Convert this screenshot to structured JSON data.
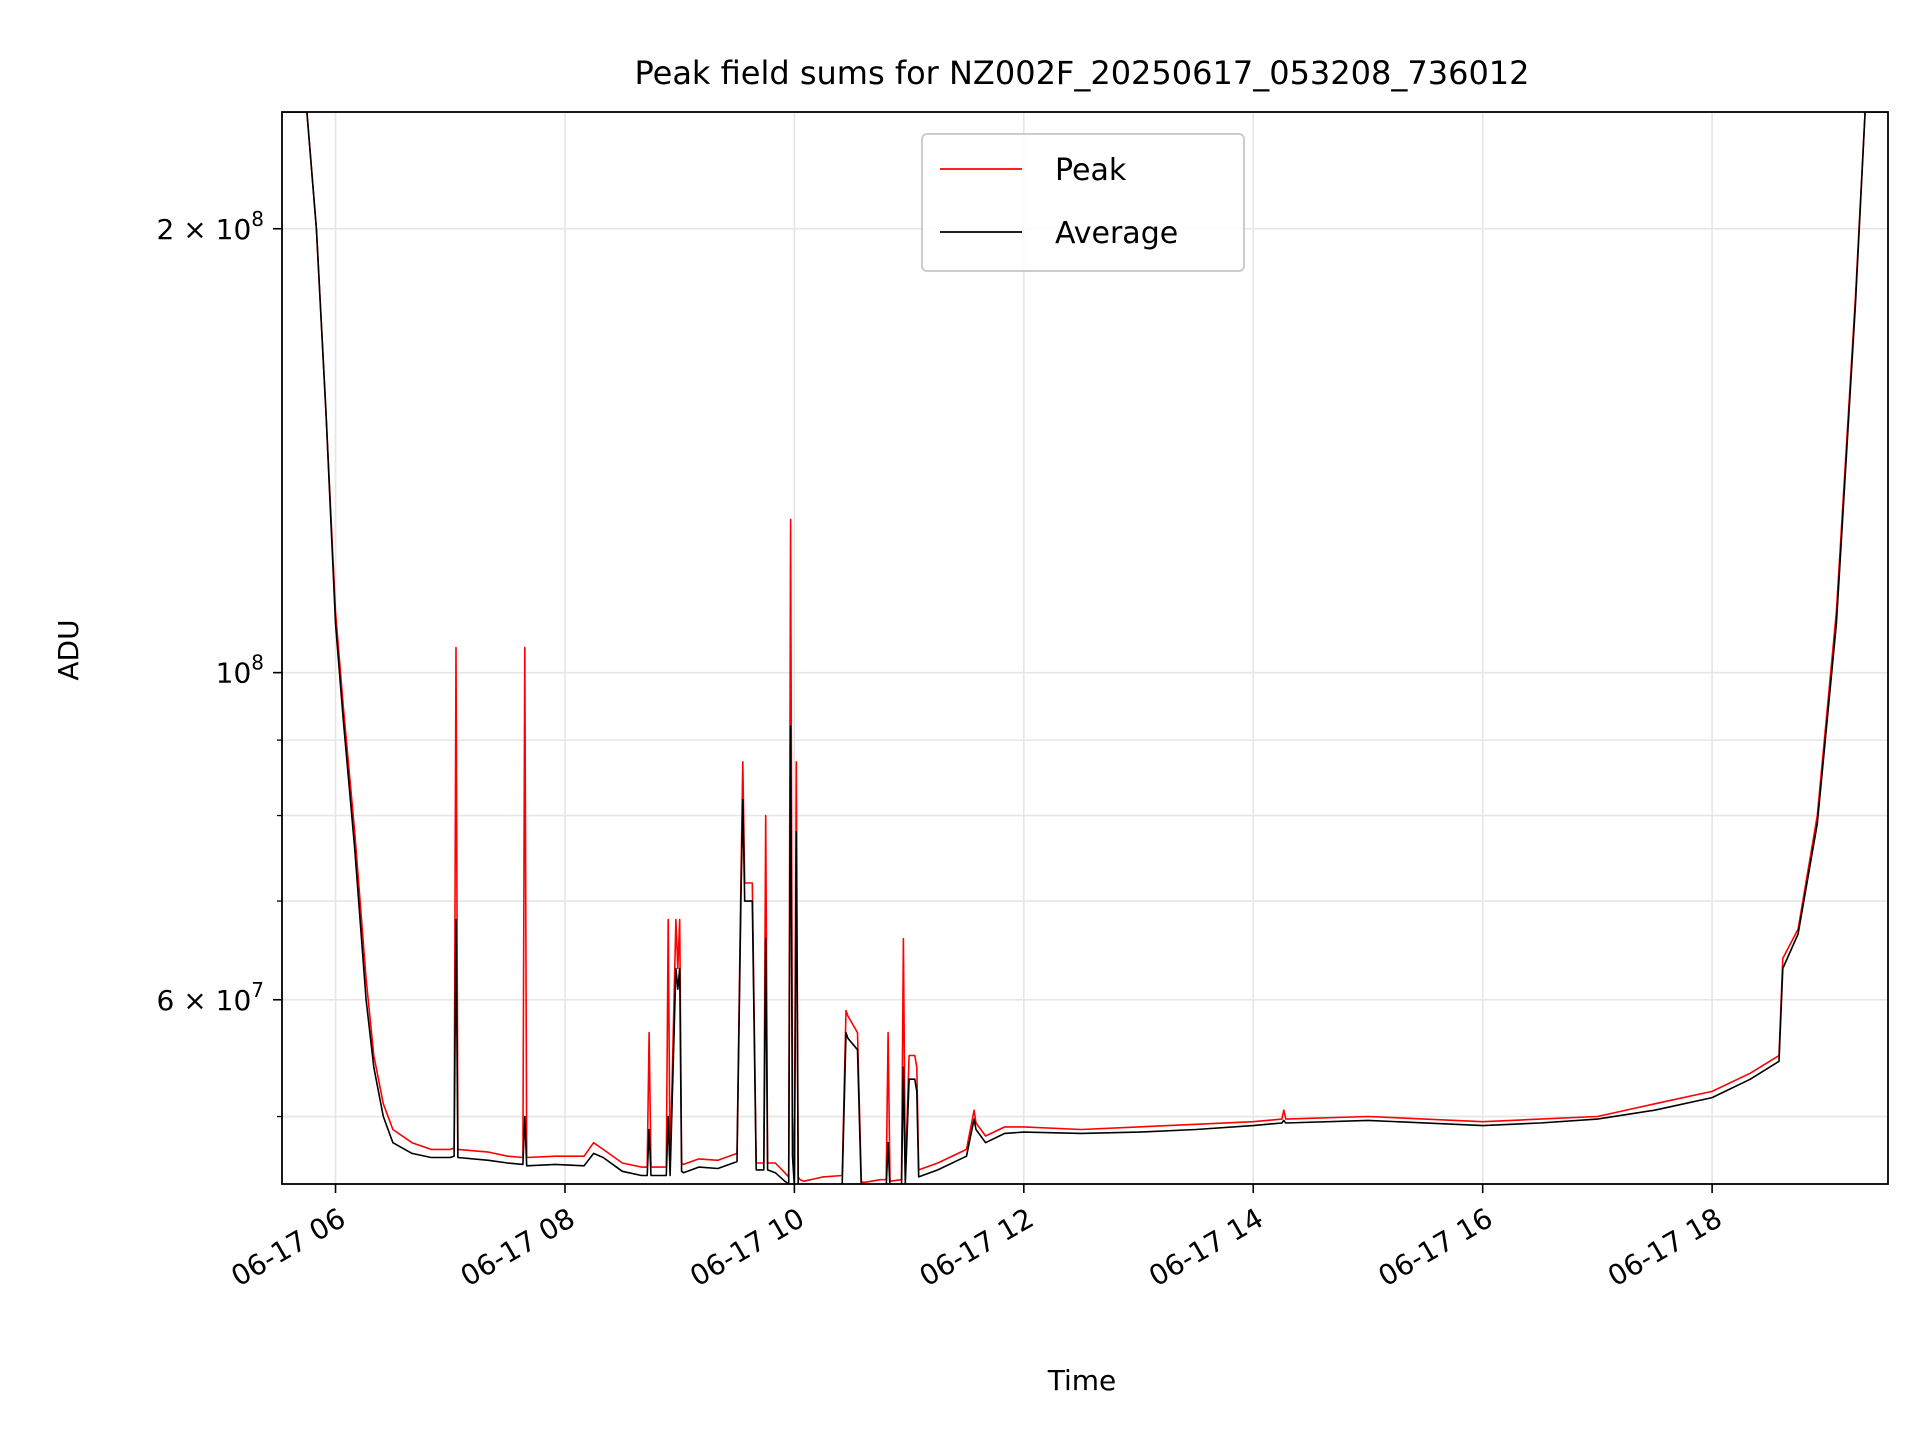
{
  "chart_data": {
    "type": "line",
    "title": "Peak field sums for NZ002F_20250617_053208_736012",
    "xlabel": "Time",
    "ylabel": "ADU",
    "yscale": "log",
    "grid": true,
    "legend_position": "upper center",
    "x_ticks": [
      "06-17 06",
      "06-17 08",
      "06-17 10",
      "06-17 12",
      "06-17 14",
      "06-17 16",
      "06-17 18"
    ],
    "x_tick_values": [
      "2025-06-17 06:00",
      "2025-06-17 08:00",
      "2025-06-17 10:00",
      "2025-06-17 12:00",
      "2025-06-17 14:00",
      "2025-06-17 16:00",
      "2025-06-17 18:00"
    ],
    "y_ticks": [
      {
        "value": 60000000,
        "mantissa": "6",
        "exponent": "7"
      },
      {
        "value": 100000000,
        "mantissa": "",
        "exponent": "8"
      },
      {
        "value": 200000000,
        "mantissa": "2",
        "exponent": "8"
      }
    ],
    "y_minor_ticks": [
      50000000,
      70000000,
      80000000,
      90000000
    ],
    "xlim": [
      "2025-06-17 05:32",
      "2025-06-17 19:32"
    ],
    "ylim": [
      45000000,
      240000000
    ],
    "series": [
      {
        "name": "Peak",
        "color": "#ff0000",
        "x": [
          "2025-06-17 05:32",
          "2025-06-17 05:45",
          "2025-06-17 05:50",
          "2025-06-17 05:55",
          "2025-06-17 06:00",
          "2025-06-17 06:04",
          "2025-06-17 06:10",
          "2025-06-17 06:16",
          "2025-06-17 06:20",
          "2025-06-17 06:25",
          "2025-06-17 06:30",
          "2025-06-17 06:40",
          "2025-06-17 06:50",
          "2025-06-17 07:00",
          "2025-06-17 07:02",
          "2025-06-17 07:03",
          "2025-06-17 07:04",
          "2025-06-17 07:20",
          "2025-06-17 07:30",
          "2025-06-17 07:38",
          "2025-06-17 07:39",
          "2025-06-17 07:40",
          "2025-06-17 07:55",
          "2025-06-17 08:10",
          "2025-06-17 08:15",
          "2025-06-17 08:20",
          "2025-06-17 08:30",
          "2025-06-17 08:40",
          "2025-06-17 08:43",
          "2025-06-17 08:44",
          "2025-06-17 08:45",
          "2025-06-17 08:53",
          "2025-06-17 08:54",
          "2025-06-17 08:55",
          "2025-06-17 08:58",
          "2025-06-17 08:59",
          "2025-06-17 09:00",
          "2025-06-17 09:01",
          "2025-06-17 09:02",
          "2025-06-17 09:10",
          "2025-06-17 09:20",
          "2025-06-17 09:30",
          "2025-06-17 09:32",
          "2025-06-17 09:33",
          "2025-06-17 09:34",
          "2025-06-17 09:35",
          "2025-06-17 09:38",
          "2025-06-17 09:40",
          "2025-06-17 09:44",
          "2025-06-17 09:45",
          "2025-06-17 09:46",
          "2025-06-17 09:50",
          "2025-06-17 09:55",
          "2025-06-17 09:57",
          "2025-06-17 09:58",
          "2025-06-17 09:59",
          "2025-06-17 10:00",
          "2025-06-17 10:01",
          "2025-06-17 10:02",
          "2025-06-17 10:03",
          "2025-06-17 10:05",
          "2025-06-17 10:15",
          "2025-06-17 10:25",
          "2025-06-17 10:27",
          "2025-06-17 10:28",
          "2025-06-17 10:33",
          "2025-06-17 10:35",
          "2025-06-17 10:36",
          "2025-06-17 10:45",
          "2025-06-17 10:48",
          "2025-06-17 10:49",
          "2025-06-17 10:50",
          "2025-06-17 10:56",
          "2025-06-17 10:57",
          "2025-06-17 10:58",
          "2025-06-17 11:00",
          "2025-06-17 11:03",
          "2025-06-17 11:04",
          "2025-06-17 11:05",
          "2025-06-17 11:15",
          "2025-06-17 11:30",
          "2025-06-17 11:34",
          "2025-06-17 11:35",
          "2025-06-17 11:40",
          "2025-06-17 11:50",
          "2025-06-17 12:00",
          "2025-06-17 12:30",
          "2025-06-17 13:00",
          "2025-06-17 13:30",
          "2025-06-17 14:00",
          "2025-06-17 14:15",
          "2025-06-17 14:16",
          "2025-06-17 14:17",
          "2025-06-17 15:00",
          "2025-06-17 16:00",
          "2025-06-17 16:30",
          "2025-06-17 17:00",
          "2025-06-17 17:30",
          "2025-06-17 18:00",
          "2025-06-17 18:20",
          "2025-06-17 18:35",
          "2025-06-17 18:37",
          "2025-06-17 18:45",
          "2025-06-17 18:55",
          "2025-06-17 19:05",
          "2025-06-17 19:15",
          "2025-06-17 19:20",
          "2025-06-17 19:32"
        ],
        "values": [
          240000000,
          240000000,
          200000000,
          150000000,
          110000000,
          95000000,
          78000000,
          62000000,
          55000000,
          51000000,
          49000000,
          48000000,
          47500000,
          47500000,
          47600000,
          104000000,
          47500000,
          47300000,
          47000000,
          46900000,
          104000000,
          46900000,
          47000000,
          47000000,
          48000000,
          47500000,
          46500000,
          46200000,
          46200000,
          57000000,
          46200000,
          46200000,
          68000000,
          46200000,
          68000000,
          63000000,
          68000000,
          46500000,
          46400000,
          46800000,
          46700000,
          47200000,
          72000000,
          87000000,
          72000000,
          72000000,
          72000000,
          46500000,
          46500000,
          80000000,
          46500000,
          46500000,
          45800000,
          45500000,
          127000000,
          50000000,
          45500000,
          87000000,
          45500000,
          45300000,
          45200000,
          45500000,
          45600000,
          59000000,
          58500000,
          57000000,
          45200000,
          45100000,
          45300000,
          45300000,
          57000000,
          45200000,
          45300000,
          66000000,
          45500000,
          55000000,
          55000000,
          54000000,
          46000000,
          46500000,
          47500000,
          50500000,
          49500000,
          48500000,
          49200000,
          49200000,
          49000000,
          49200000,
          49400000,
          49600000,
          49800000,
          50500000,
          49800000,
          50000000,
          49600000,
          49800000,
          50000000,
          51000000,
          52000000,
          53500000,
          55000000,
          64000000,
          67000000,
          80000000,
          110000000,
          180000000,
          240000000,
          240000000
        ]
      },
      {
        "name": "Average",
        "color": "#000000",
        "x": [
          "2025-06-17 05:32",
          "2025-06-17 05:45",
          "2025-06-17 05:50",
          "2025-06-17 05:55",
          "2025-06-17 06:00",
          "2025-06-17 06:04",
          "2025-06-17 06:10",
          "2025-06-17 06:16",
          "2025-06-17 06:20",
          "2025-06-17 06:25",
          "2025-06-17 06:30",
          "2025-06-17 06:40",
          "2025-06-17 06:50",
          "2025-06-17 07:00",
          "2025-06-17 07:02",
          "2025-06-17 07:03",
          "2025-06-17 07:04",
          "2025-06-17 07:20",
          "2025-06-17 07:30",
          "2025-06-17 07:38",
          "2025-06-17 07:39",
          "2025-06-17 07:40",
          "2025-06-17 07:55",
          "2025-06-17 08:10",
          "2025-06-17 08:15",
          "2025-06-17 08:20",
          "2025-06-17 08:30",
          "2025-06-17 08:40",
          "2025-06-17 08:43",
          "2025-06-17 08:44",
          "2025-06-17 08:45",
          "2025-06-17 08:53",
          "2025-06-17 08:54",
          "2025-06-17 08:55",
          "2025-06-17 08:58",
          "2025-06-17 08:59",
          "2025-06-17 09:00",
          "2025-06-17 09:01",
          "2025-06-17 09:02",
          "2025-06-17 09:10",
          "2025-06-17 09:20",
          "2025-06-17 09:30",
          "2025-06-17 09:32",
          "2025-06-17 09:33",
          "2025-06-17 09:34",
          "2025-06-17 09:35",
          "2025-06-17 09:38",
          "2025-06-17 09:40",
          "2025-06-17 09:44",
          "2025-06-17 09:45",
          "2025-06-17 09:46",
          "2025-06-17 09:50",
          "2025-06-17 09:55",
          "2025-06-17 09:57",
          "2025-06-17 09:58",
          "2025-06-17 09:59",
          "2025-06-17 10:00",
          "2025-06-17 10:01",
          "2025-06-17 10:02",
          "2025-06-17 10:03",
          "2025-06-17 10:05",
          "2025-06-17 10:15",
          "2025-06-17 10:25",
          "2025-06-17 10:27",
          "2025-06-17 10:28",
          "2025-06-17 10:33",
          "2025-06-17 10:35",
          "2025-06-17 10:36",
          "2025-06-17 10:45",
          "2025-06-17 10:48",
          "2025-06-17 10:49",
          "2025-06-17 10:50",
          "2025-06-17 10:56",
          "2025-06-17 10:57",
          "2025-06-17 10:58",
          "2025-06-17 11:00",
          "2025-06-17 11:03",
          "2025-06-17 11:04",
          "2025-06-17 11:05",
          "2025-06-17 11:15",
          "2025-06-17 11:30",
          "2025-06-17 11:34",
          "2025-06-17 11:35",
          "2025-06-17 11:40",
          "2025-06-17 11:50",
          "2025-06-17 12:00",
          "2025-06-17 12:30",
          "2025-06-17 13:00",
          "2025-06-17 13:30",
          "2025-06-17 14:00",
          "2025-06-17 14:15",
          "2025-06-17 14:16",
          "2025-06-17 14:17",
          "2025-06-17 15:00",
          "2025-06-17 16:00",
          "2025-06-17 16:30",
          "2025-06-17 17:00",
          "2025-06-17 17:30",
          "2025-06-17 18:00",
          "2025-06-17 18:20",
          "2025-06-17 18:35",
          "2025-06-17 18:37",
          "2025-06-17 18:45",
          "2025-06-17 18:55",
          "2025-06-17 19:05",
          "2025-06-17 19:15",
          "2025-06-17 19:20",
          "2025-06-17 19:32"
        ],
        "values": [
          240000000,
          240000000,
          200000000,
          150000000,
          108000000,
          93000000,
          76000000,
          60000000,
          54000000,
          50000000,
          48000000,
          47200000,
          46900000,
          46900000,
          47000000,
          68000000,
          46900000,
          46700000,
          46500000,
          46400000,
          50000000,
          46300000,
          46400000,
          46300000,
          47200000,
          46900000,
          45900000,
          45600000,
          45600000,
          49000000,
          45600000,
          45600000,
          50000000,
          45600000,
          63000000,
          61000000,
          63000000,
          45900000,
          45800000,
          46200000,
          46100000,
          46600000,
          70000000,
          82000000,
          70000000,
          70000000,
          70000000,
          46000000,
          46000000,
          66000000,
          46000000,
          45800000,
          45200000,
          45000000,
          92000000,
          47000000,
          44800000,
          78000000,
          44800000,
          44700000,
          44700000,
          44900000,
          45000000,
          57000000,
          56500000,
          55500000,
          44700000,
          44600000,
          44800000,
          44800000,
          48000000,
          44700000,
          44800000,
          54000000,
          45000000,
          53000000,
          53000000,
          52000000,
          45500000,
          46000000,
          47000000,
          49800000,
          49000000,
          48000000,
          48700000,
          48800000,
          48700000,
          48800000,
          49000000,
          49300000,
          49500000,
          49700000,
          49500000,
          49700000,
          49300000,
          49500000,
          49800000,
          50500000,
          51500000,
          53000000,
          54500000,
          63000000,
          66500000,
          79000000,
          108000000,
          178000000,
          240000000,
          240000000
        ]
      }
    ]
  }
}
